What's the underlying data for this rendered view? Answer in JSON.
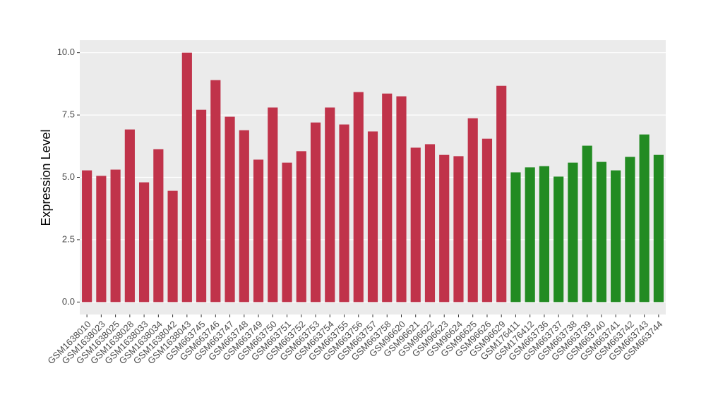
{
  "chart_data": {
    "type": "bar",
    "y_label": "Expression Level",
    "categories": [
      "GSM1638010",
      "GSM1638023",
      "GSM1638025",
      "GSM1638028",
      "GSM1638033",
      "GSM1638034",
      "GSM1638042",
      "GSM1638043",
      "GSM663745",
      "GSM663746",
      "GSM663747",
      "GSM663748",
      "GSM663749",
      "GSM663750",
      "GSM663751",
      "GSM663752",
      "GSM663753",
      "GSM663754",
      "GSM663755",
      "GSM663756",
      "GSM663757",
      "GSM663758",
      "GSM96620",
      "GSM96621",
      "GSM96622",
      "GSM96623",
      "GSM96624",
      "GSM96625",
      "GSM96626",
      "GSM96629",
      "GSM176411",
      "GSM176412",
      "GSM663736",
      "GSM663737",
      "GSM663738",
      "GSM663739",
      "GSM663740",
      "GSM663741",
      "GSM663742",
      "GSM663743",
      "GSM663744"
    ],
    "values": [
      5.28,
      5.06,
      5.31,
      6.92,
      4.8,
      6.13,
      4.46,
      10.0,
      7.71,
      8.9,
      7.43,
      6.89,
      5.71,
      7.8,
      5.59,
      6.05,
      7.2,
      7.8,
      7.12,
      8.42,
      6.84,
      8.36,
      8.25,
      6.19,
      6.33,
      5.9,
      5.85,
      7.37,
      6.55,
      8.67,
      5.2,
      5.4,
      5.45,
      5.03,
      5.59,
      6.27,
      5.62,
      5.28,
      5.82,
      6.72,
      5.9
    ],
    "colors": [
      "#c0334a",
      "#c0334a",
      "#c0334a",
      "#c0334a",
      "#c0334a",
      "#c0334a",
      "#c0334a",
      "#c0334a",
      "#c0334a",
      "#c0334a",
      "#c0334a",
      "#c0334a",
      "#c0334a",
      "#c0334a",
      "#c0334a",
      "#c0334a",
      "#c0334a",
      "#c0334a",
      "#c0334a",
      "#c0334a",
      "#c0334a",
      "#c0334a",
      "#c0334a",
      "#c0334a",
      "#c0334a",
      "#c0334a",
      "#c0334a",
      "#c0334a",
      "#c0334a",
      "#c0334a",
      "#228b22",
      "#228b22",
      "#228b22",
      "#228b22",
      "#228b22",
      "#228b22",
      "#228b22",
      "#228b22",
      "#228b22",
      "#228b22",
      "#228b22"
    ],
    "ylim": [
      -0.5,
      10.5
    ],
    "yticks": [
      {
        "value": 0,
        "label": "0.0"
      },
      2.5,
      {
        "value": 5,
        "label": "5.0"
      },
      7.5,
      {
        "value": 10,
        "label": "10.0"
      }
    ],
    "grid": true
  }
}
